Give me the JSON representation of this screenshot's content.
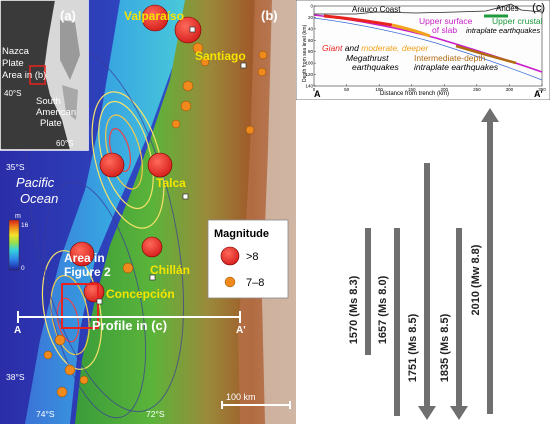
{
  "map": {
    "panel_label": "(b)",
    "ocean_label_1": "Pacific",
    "ocean_label_2": "Ocean",
    "lat_35": "35°S",
    "lat_38": "38°S",
    "lon_74": "74°S",
    "lon_72": "72°S",
    "city_valparaiso": "Valparaíso",
    "city_santiago": "Santiago",
    "city_talca": "Talca",
    "city_chillan": "Chillán",
    "city_concepcion": "Concepción",
    "area_label_1": "Area in",
    "area_label_2": "Figure 2",
    "profile_label": "Profile in (c)",
    "profile_a": "A",
    "profile_a_prime": "A'",
    "scale_label": "100 km",
    "colorbar_unit": "m",
    "colorbar_top": "16",
    "colorbar_bottom": "0",
    "legend": {
      "title": "Magnitude",
      "big_label": ">8",
      "small_label": "7–8",
      "big_color": "#e8231f",
      "small_color": "#f08a1c"
    },
    "inset": {
      "panel_label": "(a)",
      "nazca_1": "Nazca",
      "nazca_2": "Plate",
      "nazca_3": "Area in (b)",
      "sa_1": "South",
      "sa_2": "American",
      "sa_3": "Plate",
      "lat_40": "40°S",
      "lat_60": "60°S"
    }
  },
  "profile": {
    "panel_label": "(c)",
    "arauco": "Arauco Coast",
    "andes": "Andes",
    "upper_slab_1": "Upper surface",
    "upper_slab_2": "of slab",
    "upper_crustal_1": "Upper crustal",
    "upper_crustal_2": "intraplate earthquakes",
    "giant": "Giant",
    "and": " and ",
    "moderate": "moderate, deeper",
    "megathrust_1": "Megathrust",
    "megathrust_2": "earthquakes",
    "intermediate_1": "Intermediate-depth",
    "intermediate_2": "intraplate earthquakes",
    "ylabel": "Depth from sea level (km)",
    "xlabel": "Distance from trench (km)",
    "a_label": "A",
    "a_prime_label": "A'",
    "yticks": [
      "0",
      "20",
      "40",
      "60",
      "80",
      "100",
      "120",
      "140"
    ],
    "xticks": [
      "0",
      "50",
      "100",
      "150",
      "200",
      "250",
      "300",
      "350"
    ],
    "colors": {
      "giant": "#e8231f",
      "moderate": "#f2a21b",
      "slab": "#c81fc8",
      "crustal": "#1d9a3c",
      "intermediate": "#b06a12"
    }
  },
  "timeline": {
    "events": [
      {
        "label": "1570 (Ms 8.3)",
        "year": 1570,
        "direction": "none"
      },
      {
        "label": "1657 (Ms 8.0)",
        "year": 1657,
        "direction": "none"
      },
      {
        "label": "1751 (Ms 8.5)",
        "year": 1751,
        "direction": "down"
      },
      {
        "label": "1835 (Ms 8.5)",
        "year": 1835,
        "direction": "down"
      },
      {
        "label": "2010 (Mw 8.8)",
        "year": 2010,
        "direction": "up"
      }
    ],
    "color": "#6f6f6f"
  }
}
